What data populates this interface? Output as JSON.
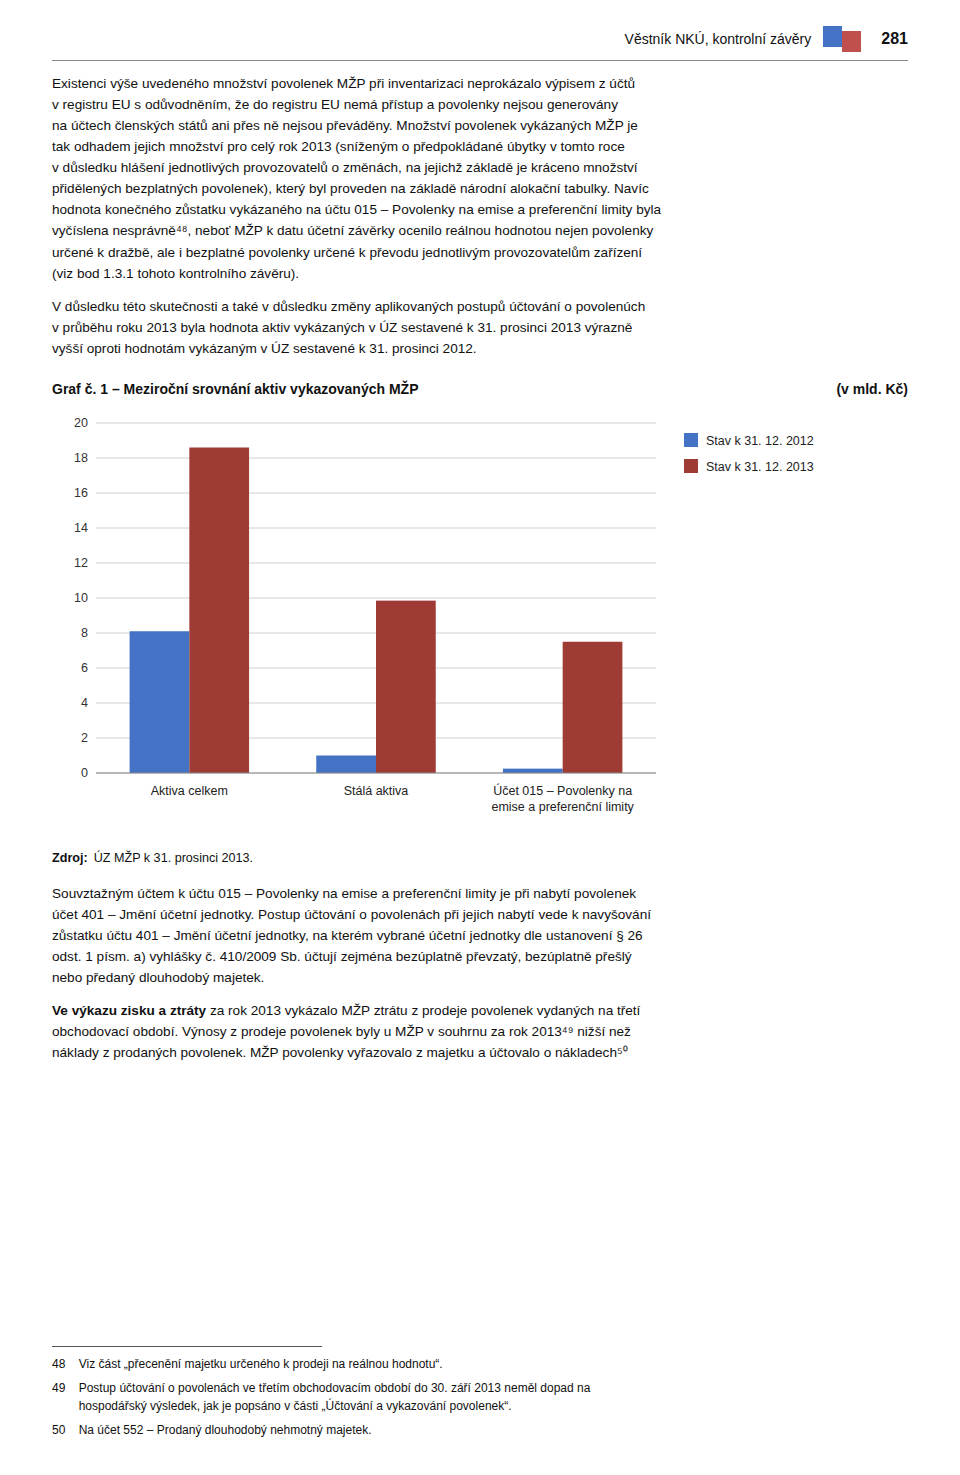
{
  "chart_data": {
    "type": "bar",
    "title": "Graf č. 1 – Meziroční srovnání aktiv vykazovaných MŽP",
    "subtitle": "(v mld. Kč)",
    "categories": [
      "Aktiva celkem",
      "Stálá aktiva",
      "Účet 015 – Povolenky na\nemise a preferenční limity"
    ],
    "series": [
      {
        "name": "Stav k 31. 12. 2012",
        "color": "#4472C4",
        "values": [
          8.1,
          1.0,
          0.25
        ]
      },
      {
        "name": "Stav k 31. 12. 2013",
        "color": "#9E3B35",
        "values": [
          18.6,
          9.85,
          7.5
        ]
      }
    ],
    "ylim": [
      0,
      20
    ],
    "yticks": [
      0,
      2,
      4,
      6,
      8,
      10,
      12,
      14,
      16,
      18,
      20
    ],
    "grid": true,
    "legend": "right"
  },
  "page": {
    "page_num": "281",
    "header_right": "Věstník NKÚ, kontrolní závěry",
    "logo_colors": [
      "#4472C4",
      "#C0504D"
    ],
    "paragraphs_before": [
      "Existenci výše uvedeného množství povolenek MŽP při inventarizaci neprokázalo výpisem z účtů\nv registru EU s odůvodněním, že do registru EU nemá přístup a povolenky nejsou generovány\nna účtech členských států ani přes ně nejsou převáděny. Množství povolenek vykázaných MŽP je\ntak odhadem jejich množství pro celý rok 2013 (sníženým o předpokládané úbytky v tomto roce\nv důsledku hlášení jednotlivých provozovatelů o změnách, na jejichž základě je kráceno množství\npřidělených bezplatných povolenek), který byl proveden na základě národní alokační tabulky. Navíc\nhodnota konečného zůstatku vykázaného na účtu 015 – Povolenky na emise a preferenční limity byla\nvyčíslena nesprávně⁴⁸, neboť MŽP k datu účetní závěrky ocenilo reálnou hodnotou nejen povolenky\nurčené k dražbě, ale i bezplatné povolenky určené k převodu jednotlivým provozovatelům zařízení\n(viz bod 1.3.1 tohoto kontrolního závěru).",
      "V důsledku této skutečnosti a také v důsledku změny aplikovaných postupů účtování o povolenúch\nv průběhu roku 2013 byla hodnota aktiv vykázaných v ÚZ sestavené k 31. prosinci 2013 výrazně\nvyšší oproti hodnotám vykázaným v ÚZ sestavené k 31. prosinci 2012."
    ],
    "source_label": "Zdroj:",
    "source_text": "ÚZ MŽP k 31. prosinci 2013.",
    "paragraphs_after": [
      "Souvztažným účtem k účtu 015 – Povolenky na emise a preferenční limity je při nabytí povolenek\núčet 401 – Jmění účetní jednotky. Postup účtování o povolenách při jejich nabytí vede k navyšování\nzůstatku účtu 401 – Jmění účetní jednotky, na kterém vybrané účetní jednotky dle ustanovení § 26\nodst. 1 písm. a) vyhlášky č. 410/2009 Sb. účtují zejména bezúplatně převzatý, bezúplatně přešlý\nnebo předaný dlouhodobý majetek."
    ],
    "p4_bold": "Ve výkazu zisku a ztráty",
    "p4_rest": " za rok 2013 vykázalo MŽP ztrátu z prodeje povolenek vydaných na třetí\nobchodovací období. Výnosy z prodeje povolenek byly u MŽP v souhrnu za rok 2013⁴⁹ nižší než\nnáklady z prodaných povolenek. MŽP povolenky vyřazovalo z majetku a účtovalo o nákladech⁵⁰",
    "footnotes": [
      "48    Viz část „přecenění majetku určeného k prodeji na reálnou hodnotu“.",
      "49    Postup účtování o povolenách ve třetím obchodovacím období do 30. září 2013 neměl dopad na\n        hospodářský výsledek, jak je popsáno v části „Účtování a vykazování povolenek“.",
      "50    Na účet 552 – Prodaný dlouhodobý nehmotný majetek."
    ]
  }
}
